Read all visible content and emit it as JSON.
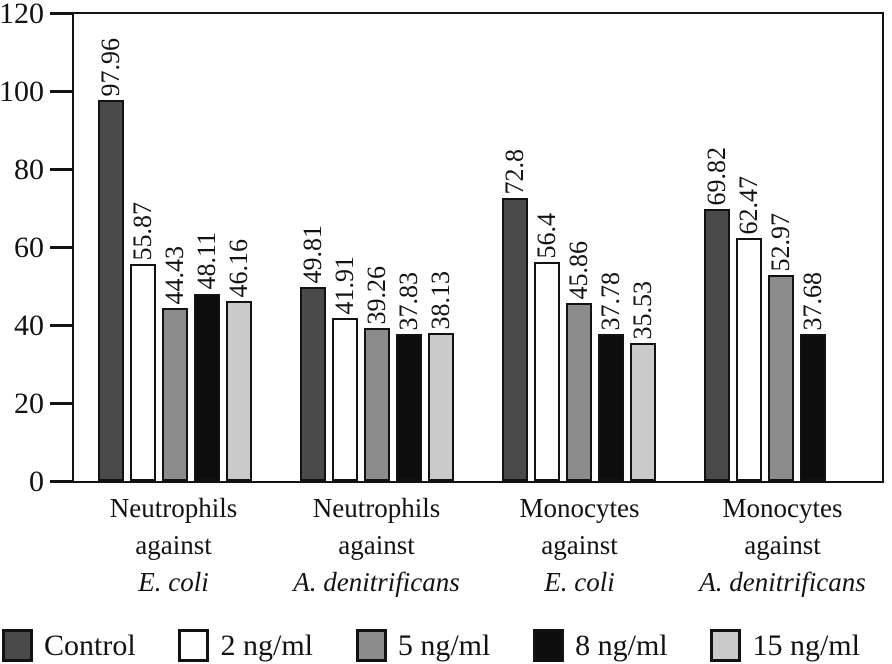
{
  "colors": {
    "axis": "#121212",
    "bar_border": "#121212",
    "background": "#ffffff"
  },
  "chart_data": {
    "type": "bar",
    "title": "",
    "xlabel": "",
    "ylabel": "",
    "ylim": [
      0,
      120
    ],
    "yticks": [
      0,
      20,
      40,
      60,
      80,
      100,
      120
    ],
    "grid": false,
    "legend_position": "bottom",
    "value_labels": "rotated-90-above-bars",
    "categories": [
      {
        "lines": [
          "Neutrophils",
          "against"
        ],
        "species": "E. coli"
      },
      {
        "lines": [
          "Neutrophils",
          "against"
        ],
        "species": "A. denitrificans"
      },
      {
        "lines": [
          "Monocytes",
          "against"
        ],
        "species": "E. coli"
      },
      {
        "lines": [
          "Monocytes",
          "against"
        ],
        "species": "A. denitrificans"
      }
    ],
    "series": [
      {
        "name": "Control",
        "color": "#4a4a4a",
        "values": [
          97.96,
          49.81,
          72.8,
          69.82
        ]
      },
      {
        "name": "2 ng/ml",
        "color": "#ffffff",
        "values": [
          55.87,
          41.91,
          56.4,
          62.47
        ]
      },
      {
        "name": "5 ng/ml",
        "color": "#8c8c8c",
        "values": [
          44.43,
          39.26,
          45.86,
          52.97
        ]
      },
      {
        "name": "8 ng/ml",
        "color": "#0d0d0d",
        "values": [
          48.11,
          37.83,
          37.78,
          37.68
        ]
      },
      {
        "name": "15 ng/ml",
        "color": "#cacaca",
        "values": [
          46.16,
          38.13,
          35.53,
          null
        ]
      }
    ]
  }
}
